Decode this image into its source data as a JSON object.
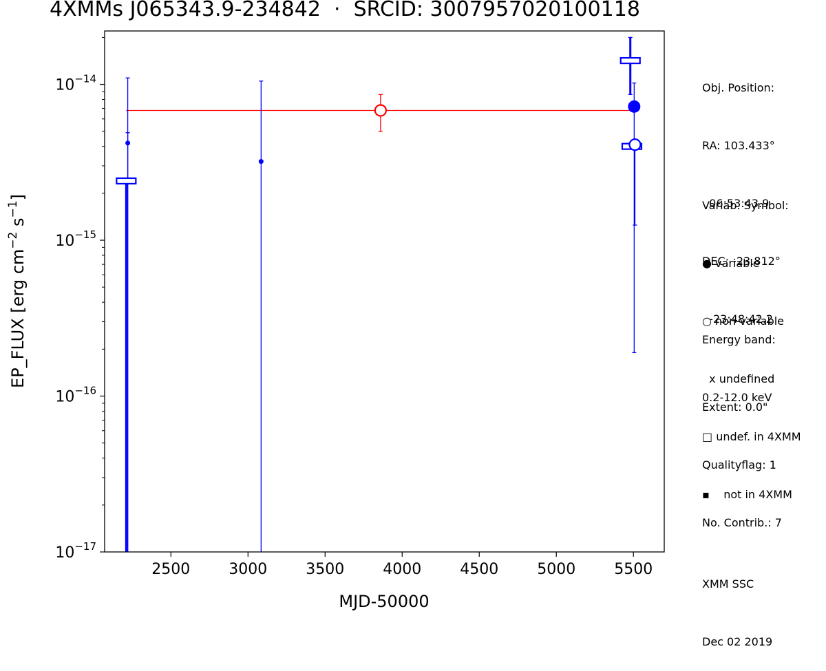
{
  "chart_data": {
    "type": "scatter",
    "title": "4XMMs J065343.9-234842  ·  SRCID: 3007957020100118",
    "xlabel": "MJD-50000",
    "ylabel": "EP_FLUX [erg cm",
    "ylabel_sup1": "−2",
    "ylabel_mid": " s",
    "ylabel_sup2": "−1",
    "ylabel_end": "]",
    "xscale": "linear",
    "yscale": "log",
    "xlim": [
      2070,
      5700
    ],
    "ylim": [
      1e-17,
      2.2e-14
    ],
    "grid": false,
    "x_ticks": [
      {
        "value": 2500,
        "label": "2500"
      },
      {
        "value": 3000,
        "label": "3000"
      },
      {
        "value": 3500,
        "label": "3500"
      },
      {
        "value": 4000,
        "label": "4000"
      },
      {
        "value": 4500,
        "label": "4500"
      },
      {
        "value": 5000,
        "label": "5000"
      },
      {
        "value": 5500,
        "label": "5500"
      }
    ],
    "y_ticks": [
      {
        "value": 1e-17,
        "base": "10",
        "exp": "−17"
      },
      {
        "value": 1e-16,
        "base": "10",
        "exp": "−16"
      },
      {
        "value": 1e-15,
        "base": "10",
        "exp": "−15"
      },
      {
        "value": 1e-14,
        "base": "10",
        "exp": "−14"
      }
    ],
    "mean_line": {
      "x_start": 2210,
      "x_end": 5510,
      "y": 6.8e-15,
      "color": "#ff0000"
    },
    "points": [
      {
        "x": 2220,
        "y": 4.2e-15,
        "y_low": 1e-17,
        "y_high": 1.1e-14,
        "symbol": "small-dot",
        "color": "#0000ff"
      },
      {
        "x": 2220,
        "y": 4.2e-15,
        "y_low": 1e-17,
        "y_high": 4.9e-15,
        "symbol": "none",
        "color": "#0000ff"
      },
      {
        "x": 2210,
        "y": 2.4e-15,
        "y_low": 1e-17,
        "y_high": 2.4e-15,
        "symbol": "square",
        "color": "#0000ff"
      },
      {
        "x": 3085,
        "y": 3.2e-15,
        "y_low": 1e-17,
        "y_high": 1.05e-14,
        "symbol": "small-dot",
        "color": "#0000ff"
      },
      {
        "x": 3860,
        "y": 6.8e-15,
        "y_low": 5e-15,
        "y_high": 8.6e-15,
        "symbol": "open-circle",
        "color": "#ff0000"
      },
      {
        "x": 5480,
        "y": 1.42e-14,
        "y_low": 8.6e-15,
        "y_high": 2e-14,
        "symbol": "square",
        "color": "#0000ff"
      },
      {
        "x": 5490,
        "y": 4e-15,
        "y_low": 4e-15,
        "y_high": 4e-15,
        "symbol": "square",
        "color": "#0000ff"
      },
      {
        "x": 5505,
        "y": 7.2e-15,
        "y_low": 1.9e-16,
        "y_high": 1.02e-14,
        "symbol": "filled-circle",
        "color": "#0000ff"
      },
      {
        "x": 5510,
        "y": 4.1e-15,
        "y_low": 1.25e-15,
        "y_high": 4.1e-15,
        "symbol": "open-circle",
        "color": "#0000ff"
      }
    ]
  },
  "side_panel": {
    "position_lines": [
      "Obj. Position:",
      "RA: 103.433°",
      "  06:53:43.9",
      "DEC: -23.812°",
      "  -23:48:42.2"
    ],
    "symbol_title": "Variab. Symbol:",
    "legend": [
      {
        "glyph": "●",
        "label": " variable"
      },
      {
        "glyph": "○",
        "label": " non-variable"
      },
      {
        "glyph": "",
        "label": "  x undefined"
      },
      {
        "glyph": "□",
        "label": " undef. in 4XMM"
      },
      {
        "glyph": "▪",
        "label": "    not in 4XMM"
      }
    ],
    "energy_lines": [
      "Energy band:",
      "0.2-12.0 keV"
    ],
    "info_lines": [
      "Extent: 0.0\"",
      "Qualityflag: 1",
      "No. Contrib.: 7"
    ],
    "footer_lines": [
      "XMM SSC",
      "Dec 02 2019"
    ]
  }
}
